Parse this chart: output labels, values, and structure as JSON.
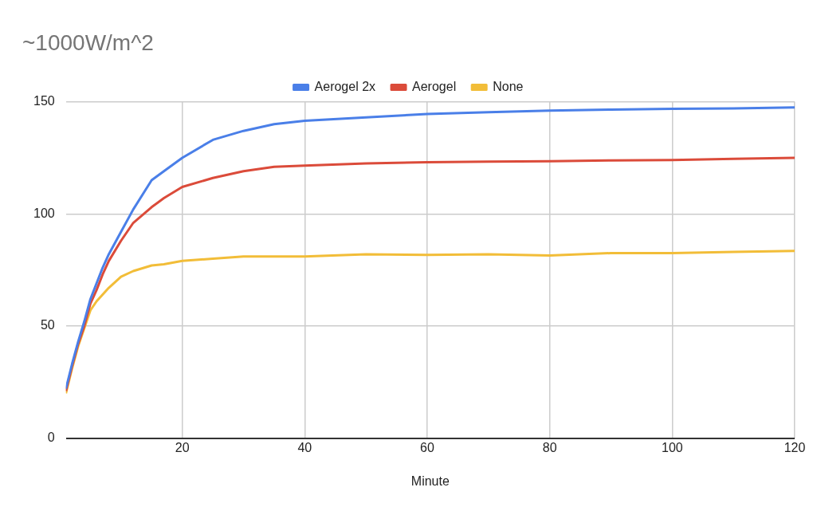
{
  "chart_data": {
    "type": "line",
    "title": "~1000W/m^2",
    "xlabel": "Minute",
    "legend": "top",
    "grid": true,
    "marker": "none",
    "line_style": "solid",
    "x": [
      1,
      2,
      3,
      4,
      5,
      6,
      7,
      8,
      10,
      12,
      15,
      17,
      20,
      25,
      30,
      35,
      40,
      50,
      60,
      70,
      80,
      90,
      100,
      110,
      120
    ],
    "xlim": [
      1,
      120
    ],
    "xticks": [
      20,
      40,
      60,
      80,
      100,
      120
    ],
    "ylim": [
      0,
      150
    ],
    "yticks": [
      0,
      50,
      100,
      150
    ],
    "series": [
      {
        "name": "Aerogel 2x",
        "color": "#4a7fe8",
        "values": [
          22,
          33,
          43,
          52,
          62,
          69,
          76,
          82,
          92,
          102,
          115,
          119,
          125,
          133,
          137,
          140,
          141.5,
          143,
          144.5,
          145.3,
          146,
          146.5,
          146.8,
          147,
          147.5
        ]
      },
      {
        "name": "Aerogel",
        "color": "#db4b3a",
        "values": [
          21,
          32,
          42,
          50,
          60,
          66,
          73,
          79,
          88,
          96,
          103,
          107,
          112,
          116,
          119,
          121,
          121.5,
          122.5,
          123,
          123.3,
          123.5,
          123.8,
          124,
          124.5,
          125
        ]
      },
      {
        "name": "None",
        "color": "#f2bd38",
        "values": [
          20,
          31,
          41,
          49,
          57,
          61,
          64,
          67,
          72,
          74.5,
          77,
          77.5,
          79,
          80,
          81,
          81,
          81,
          82,
          81.7,
          82,
          81.4,
          82.5,
          82.5,
          83,
          83.5
        ]
      }
    ]
  }
}
